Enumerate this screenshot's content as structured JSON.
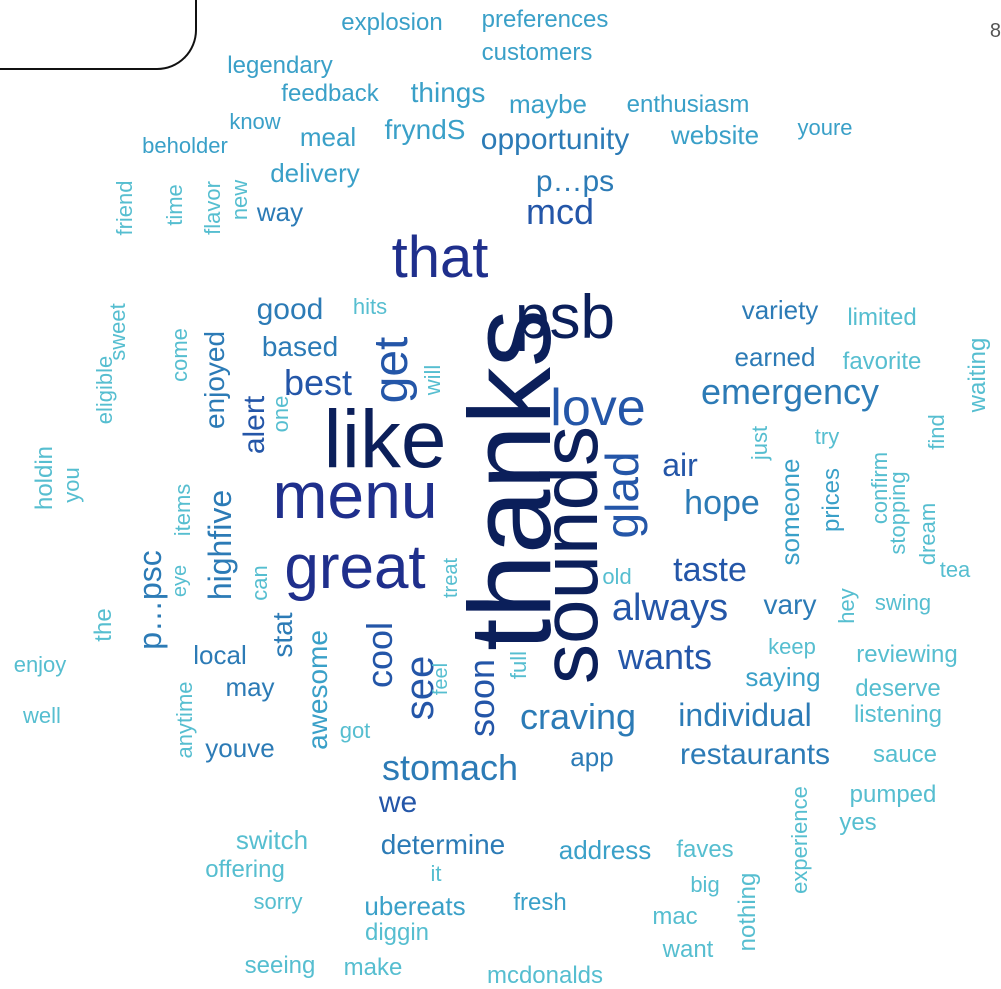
{
  "page_number": "8",
  "palette": {
    "darkest": "#0b1f5a",
    "dark": "#1f2f8c",
    "mid_dark": "#2456a8",
    "mid": "#2c7bb6",
    "light": "#3aa0c8",
    "lightest": "#56bed0"
  },
  "words": [
    {
      "text": "thanks",
      "shade": "darkest",
      "orient": "v"
    },
    {
      "text": "like",
      "shade": "darkest",
      "orient": "h"
    },
    {
      "text": "psb",
      "shade": "darkest",
      "orient": "h"
    },
    {
      "text": "sounds",
      "shade": "darkest",
      "orient": "v"
    },
    {
      "text": "menu",
      "shade": "dark",
      "orient": "h"
    },
    {
      "text": "that",
      "shade": "dark",
      "orient": "h"
    },
    {
      "text": "great",
      "shade": "dark",
      "orient": "h"
    },
    {
      "text": "love",
      "shade": "mid_dark",
      "orient": "h"
    },
    {
      "text": "get",
      "shade": "mid_dark",
      "orient": "v"
    },
    {
      "text": "glad",
      "shade": "mid_dark",
      "orient": "v"
    },
    {
      "text": "mcd",
      "shade": "mid_dark",
      "orient": "h"
    },
    {
      "text": "best",
      "shade": "mid_dark",
      "orient": "h"
    },
    {
      "text": "alert",
      "shade": "mid_dark",
      "orient": "v"
    },
    {
      "text": "emergency",
      "shade": "mid",
      "orient": "h"
    },
    {
      "text": "always",
      "shade": "mid_dark",
      "orient": "h"
    },
    {
      "text": "wants",
      "shade": "mid_dark",
      "orient": "h"
    },
    {
      "text": "taste",
      "shade": "mid_dark",
      "orient": "h"
    },
    {
      "text": "hope",
      "shade": "mid",
      "orient": "h"
    },
    {
      "text": "air",
      "shade": "mid_dark",
      "orient": "h"
    },
    {
      "text": "stomach",
      "shade": "mid",
      "orient": "h"
    },
    {
      "text": "craving",
      "shade": "mid",
      "orient": "h"
    },
    {
      "text": "see",
      "shade": "mid_dark",
      "orient": "v"
    },
    {
      "text": "cool",
      "shade": "mid_dark",
      "orient": "v"
    },
    {
      "text": "soon",
      "shade": "mid_dark",
      "orient": "v"
    },
    {
      "text": "p…psc",
      "shade": "mid",
      "orient": "v"
    },
    {
      "text": "p…ps",
      "shade": "mid",
      "orient": "h"
    },
    {
      "text": "opportunity",
      "shade": "mid",
      "orient": "h"
    },
    {
      "text": "highfive",
      "shade": "mid",
      "orient": "v"
    },
    {
      "text": "enjoyed",
      "shade": "mid",
      "orient": "v"
    },
    {
      "text": "individual",
      "shade": "mid",
      "orient": "h"
    },
    {
      "text": "restaurants",
      "shade": "mid",
      "orient": "h"
    },
    {
      "text": "we",
      "shade": "mid_dark",
      "orient": "h"
    },
    {
      "text": "good",
      "shade": "mid",
      "orient": "h"
    },
    {
      "text": "based",
      "shade": "mid",
      "orient": "h"
    },
    {
      "text": "variety",
      "shade": "mid",
      "orient": "h"
    },
    {
      "text": "earned",
      "shade": "mid",
      "orient": "h"
    },
    {
      "text": "determine",
      "shade": "mid",
      "orient": "h"
    },
    {
      "text": "vary",
      "shade": "mid",
      "orient": "h"
    },
    {
      "text": "someone",
      "shade": "light",
      "orient": "v"
    },
    {
      "text": "prices",
      "shade": "light",
      "orient": "v"
    },
    {
      "text": "awesome",
      "shade": "light",
      "orient": "v"
    },
    {
      "text": "youve",
      "shade": "mid",
      "orient": "h"
    },
    {
      "text": "may",
      "shade": "mid",
      "orient": "h"
    },
    {
      "text": "local",
      "shade": "mid",
      "orient": "h"
    },
    {
      "text": "stat",
      "shade": "mid",
      "orient": "v"
    },
    {
      "text": "saying",
      "shade": "light",
      "orient": "h"
    },
    {
      "text": "app",
      "shade": "mid",
      "orient": "h"
    },
    {
      "text": "address",
      "shade": "light",
      "orient": "h"
    },
    {
      "text": "ubereats",
      "shade": "light",
      "orient": "h"
    },
    {
      "text": "fresh",
      "shade": "light",
      "orient": "h"
    },
    {
      "text": "delivery",
      "shade": "light",
      "orient": "h"
    },
    {
      "text": "way",
      "shade": "mid",
      "orient": "h"
    },
    {
      "text": "meal",
      "shade": "light",
      "orient": "h"
    },
    {
      "text": "fryndS",
      "shade": "light",
      "orient": "h"
    },
    {
      "text": "website",
      "shade": "light",
      "orient": "h"
    },
    {
      "text": "youre",
      "shade": "light",
      "orient": "h"
    },
    {
      "text": "things",
      "shade": "light",
      "orient": "h"
    },
    {
      "text": "maybe",
      "shade": "light",
      "orient": "h"
    },
    {
      "text": "enthusiasm",
      "shade": "light",
      "orient": "h"
    },
    {
      "text": "feedback",
      "shade": "light",
      "orient": "h"
    },
    {
      "text": "know",
      "shade": "light",
      "orient": "h"
    },
    {
      "text": "beholder",
      "shade": "light",
      "orient": "h"
    },
    {
      "text": "legendary",
      "shade": "light",
      "orient": "h"
    },
    {
      "text": "customers",
      "shade": "light",
      "orient": "h"
    },
    {
      "text": "explosion",
      "shade": "light",
      "orient": "h"
    },
    {
      "text": "preferences",
      "shade": "light",
      "orient": "h"
    },
    {
      "text": "friend",
      "shade": "lightest",
      "orient": "v"
    },
    {
      "text": "time",
      "shade": "lightest",
      "orient": "v"
    },
    {
      "text": "flavor",
      "shade": "lightest",
      "orient": "v"
    },
    {
      "text": "new",
      "shade": "lightest",
      "orient": "v"
    },
    {
      "text": "sweet",
      "shade": "lightest",
      "orient": "v"
    },
    {
      "text": "eligible",
      "shade": "lightest",
      "orient": "v"
    },
    {
      "text": "holdin",
      "shade": "lightest",
      "orient": "v"
    },
    {
      "text": "you",
      "shade": "lightest",
      "orient": "v"
    },
    {
      "text": "come",
      "shade": "lightest",
      "orient": "v"
    },
    {
      "text": "hits",
      "shade": "lightest",
      "orient": "h"
    },
    {
      "text": "will",
      "shade": "lightest",
      "orient": "v"
    },
    {
      "text": "one",
      "shade": "lightest",
      "orient": "v"
    },
    {
      "text": "items",
      "shade": "lightest",
      "orient": "v"
    },
    {
      "text": "eye",
      "shade": "lightest",
      "orient": "v"
    },
    {
      "text": "can",
      "shade": "lightest",
      "orient": "v"
    },
    {
      "text": "the",
      "shade": "lightest",
      "orient": "v"
    },
    {
      "text": "enjoy",
      "shade": "lightest",
      "orient": "h"
    },
    {
      "text": "well",
      "shade": "lightest",
      "orient": "h"
    },
    {
      "text": "anytime",
      "shade": "lightest",
      "orient": "v"
    },
    {
      "text": "got",
      "shade": "lightest",
      "orient": "h"
    },
    {
      "text": "feel",
      "shade": "lightest",
      "orient": "v"
    },
    {
      "text": "treat",
      "shade": "lightest",
      "orient": "v"
    },
    {
      "text": "full",
      "shade": "lightest",
      "orient": "v"
    },
    {
      "text": "old",
      "shade": "lightest",
      "orient": "h"
    },
    {
      "text": "limited",
      "shade": "lightest",
      "orient": "h"
    },
    {
      "text": "favorite",
      "shade": "lightest",
      "orient": "h"
    },
    {
      "text": "waiting",
      "shade": "lightest",
      "orient": "v"
    },
    {
      "text": "just",
      "shade": "lightest",
      "orient": "v"
    },
    {
      "text": "try",
      "shade": "lightest",
      "orient": "h"
    },
    {
      "text": "confirm",
      "shade": "lightest",
      "orient": "v"
    },
    {
      "text": "stopping",
      "shade": "lightest",
      "orient": "v"
    },
    {
      "text": "dream",
      "shade": "lightest",
      "orient": "v"
    },
    {
      "text": "find",
      "shade": "lightest",
      "orient": "v"
    },
    {
      "text": "tea",
      "shade": "lightest",
      "orient": "h"
    },
    {
      "text": "hey",
      "shade": "lightest",
      "orient": "v"
    },
    {
      "text": "swing",
      "shade": "lightest",
      "orient": "h"
    },
    {
      "text": "keep",
      "shade": "lightest",
      "orient": "h"
    },
    {
      "text": "reviewing",
      "shade": "lightest",
      "orient": "h"
    },
    {
      "text": "deserve",
      "shade": "lightest",
      "orient": "h"
    },
    {
      "text": "listening",
      "shade": "lightest",
      "orient": "h"
    },
    {
      "text": "sauce",
      "shade": "lightest",
      "orient": "h"
    },
    {
      "text": "pumped",
      "shade": "lightest",
      "orient": "h"
    },
    {
      "text": "yes",
      "shade": "lightest",
      "orient": "h"
    },
    {
      "text": "experience",
      "shade": "lightest",
      "orient": "v"
    },
    {
      "text": "faves",
      "shade": "lightest",
      "orient": "h"
    },
    {
      "text": "big",
      "shade": "lightest",
      "orient": "h"
    },
    {
      "text": "nothing",
      "shade": "lightest",
      "orient": "v"
    },
    {
      "text": "mac",
      "shade": "lightest",
      "orient": "h"
    },
    {
      "text": "want",
      "shade": "lightest",
      "orient": "h"
    },
    {
      "text": "switch",
      "shade": "lightest",
      "orient": "h"
    },
    {
      "text": "offering",
      "shade": "lightest",
      "orient": "h"
    },
    {
      "text": "it",
      "shade": "lightest",
      "orient": "h"
    },
    {
      "text": "sorry",
      "shade": "lightest",
      "orient": "h"
    },
    {
      "text": "diggin",
      "shade": "lightest",
      "orient": "h"
    },
    {
      "text": "seeing",
      "shade": "lightest",
      "orient": "h"
    },
    {
      "text": "make",
      "shade": "lightest",
      "orient": "h"
    },
    {
      "text": "mcdonalds",
      "shade": "lightest",
      "orient": "h"
    }
  ]
}
